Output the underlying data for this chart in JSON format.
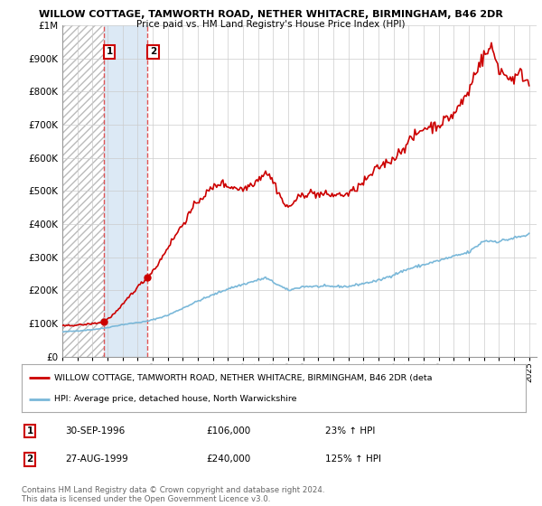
{
  "title1": "WILLOW COTTAGE, TAMWORTH ROAD, NETHER WHITACRE, BIRMINGHAM, B46 2DR",
  "title2": "Price paid vs. HM Land Registry's House Price Index (HPI)",
  "legend_label1": "WILLOW COTTAGE, TAMWORTH ROAD, NETHER WHITACRE, BIRMINGHAM, B46 2DR (deta",
  "legend_label2": "HPI: Average price, detached house, North Warwickshire",
  "transaction1_date": "30-SEP-1996",
  "transaction1_price": 106000,
  "transaction1_hpi": "23% ↑ HPI",
  "transaction2_date": "27-AUG-1999",
  "transaction2_price": 240000,
  "transaction2_hpi": "125% ↑ HPI",
  "footnote1": "Contains HM Land Registry data © Crown copyright and database right 2024.",
  "footnote2": "This data is licensed under the Open Government Licence v3.0.",
  "hpi_color": "#7ab8d9",
  "price_color": "#cc0000",
  "vline_color": "#dd4444",
  "shaded_color": "#dce9f5",
  "ylim_max": 1000000,
  "xlim_start": 1994.0,
  "xlim_end": 2025.5,
  "t1_x": 1996.75,
  "t2_x": 1999.65,
  "t1_y": 106000,
  "t2_y": 240000,
  "background_color": "#ffffff",
  "grid_color": "#cccccc",
  "yticks": [
    0,
    100000,
    200000,
    300000,
    400000,
    500000,
    600000,
    700000,
    800000,
    900000,
    1000000
  ],
  "hpi_anchors_x": [
    1994.0,
    1995.0,
    1996.0,
    1996.75,
    1998.0,
    1999.65,
    2001.0,
    2003.0,
    2005.0,
    2007.5,
    2009.0,
    2010.0,
    2013.0,
    2015.0,
    2017.0,
    2019.0,
    2021.0,
    2022.0,
    2023.0,
    2024.0,
    2025.0
  ],
  "hpi_anchors_y": [
    75000,
    78000,
    82000,
    86000,
    97000,
    107000,
    125000,
    168000,
    205000,
    238000,
    200000,
    212000,
    212000,
    230000,
    265000,
    290000,
    315000,
    350000,
    348000,
    358000,
    368000
  ],
  "price_anchors_x": [
    1994.0,
    1995.5,
    1996.5,
    1996.75,
    1997.2,
    1997.8,
    1998.5,
    1999.0,
    1999.65,
    2000.3,
    2001.0,
    2002.0,
    2003.0,
    2004.0,
    2004.5,
    2005.0,
    2005.5,
    2006.0,
    2007.0,
    2007.5,
    2008.0,
    2008.8,
    2009.0,
    2009.5,
    2010.0,
    2010.5,
    2011.0,
    2012.0,
    2013.0,
    2014.0,
    2015.0,
    2016.0,
    2017.0,
    2018.0,
    2019.0,
    2020.0,
    2021.0,
    2021.5,
    2022.0,
    2022.5,
    2023.0,
    2023.5,
    2024.0,
    2024.5,
    2025.0
  ],
  "price_anchors_y": [
    93000,
    97000,
    103000,
    106000,
    120000,
    145000,
    185000,
    210000,
    240000,
    275000,
    330000,
    400000,
    470000,
    510000,
    525000,
    515000,
    510000,
    505000,
    535000,
    560000,
    530000,
    455000,
    450000,
    472000,
    490000,
    495000,
    490000,
    488000,
    490000,
    525000,
    572000,
    598000,
    648000,
    690000,
    700000,
    732000,
    800000,
    870000,
    905000,
    935000,
    870000,
    845000,
    840000,
    855000,
    825000
  ]
}
